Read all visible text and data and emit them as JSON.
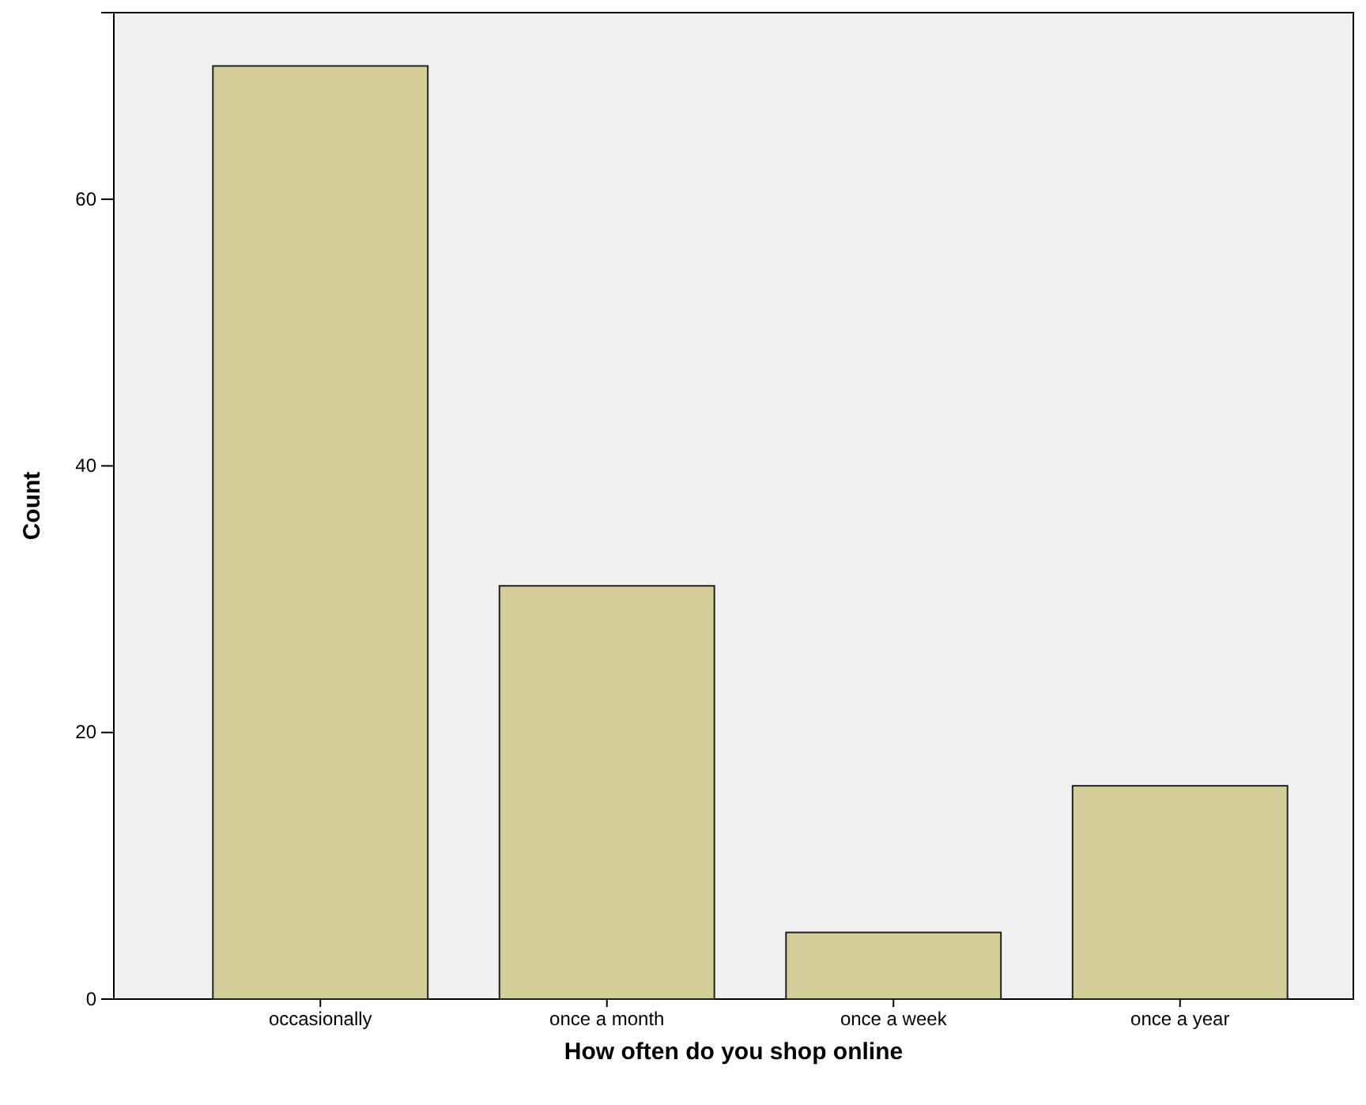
{
  "chart_data": {
    "type": "bar",
    "xlabel": "How often do you shop online",
    "ylabel": "Count",
    "categories": [
      "occasionally",
      "once a month",
      "once a week",
      "once a year"
    ],
    "values": [
      70,
      31,
      5,
      16
    ],
    "color": "#d3ce97",
    "ylim": [
      0,
      74
    ],
    "yticks": [
      0,
      20,
      40,
      60
    ],
    "grid": false
  }
}
